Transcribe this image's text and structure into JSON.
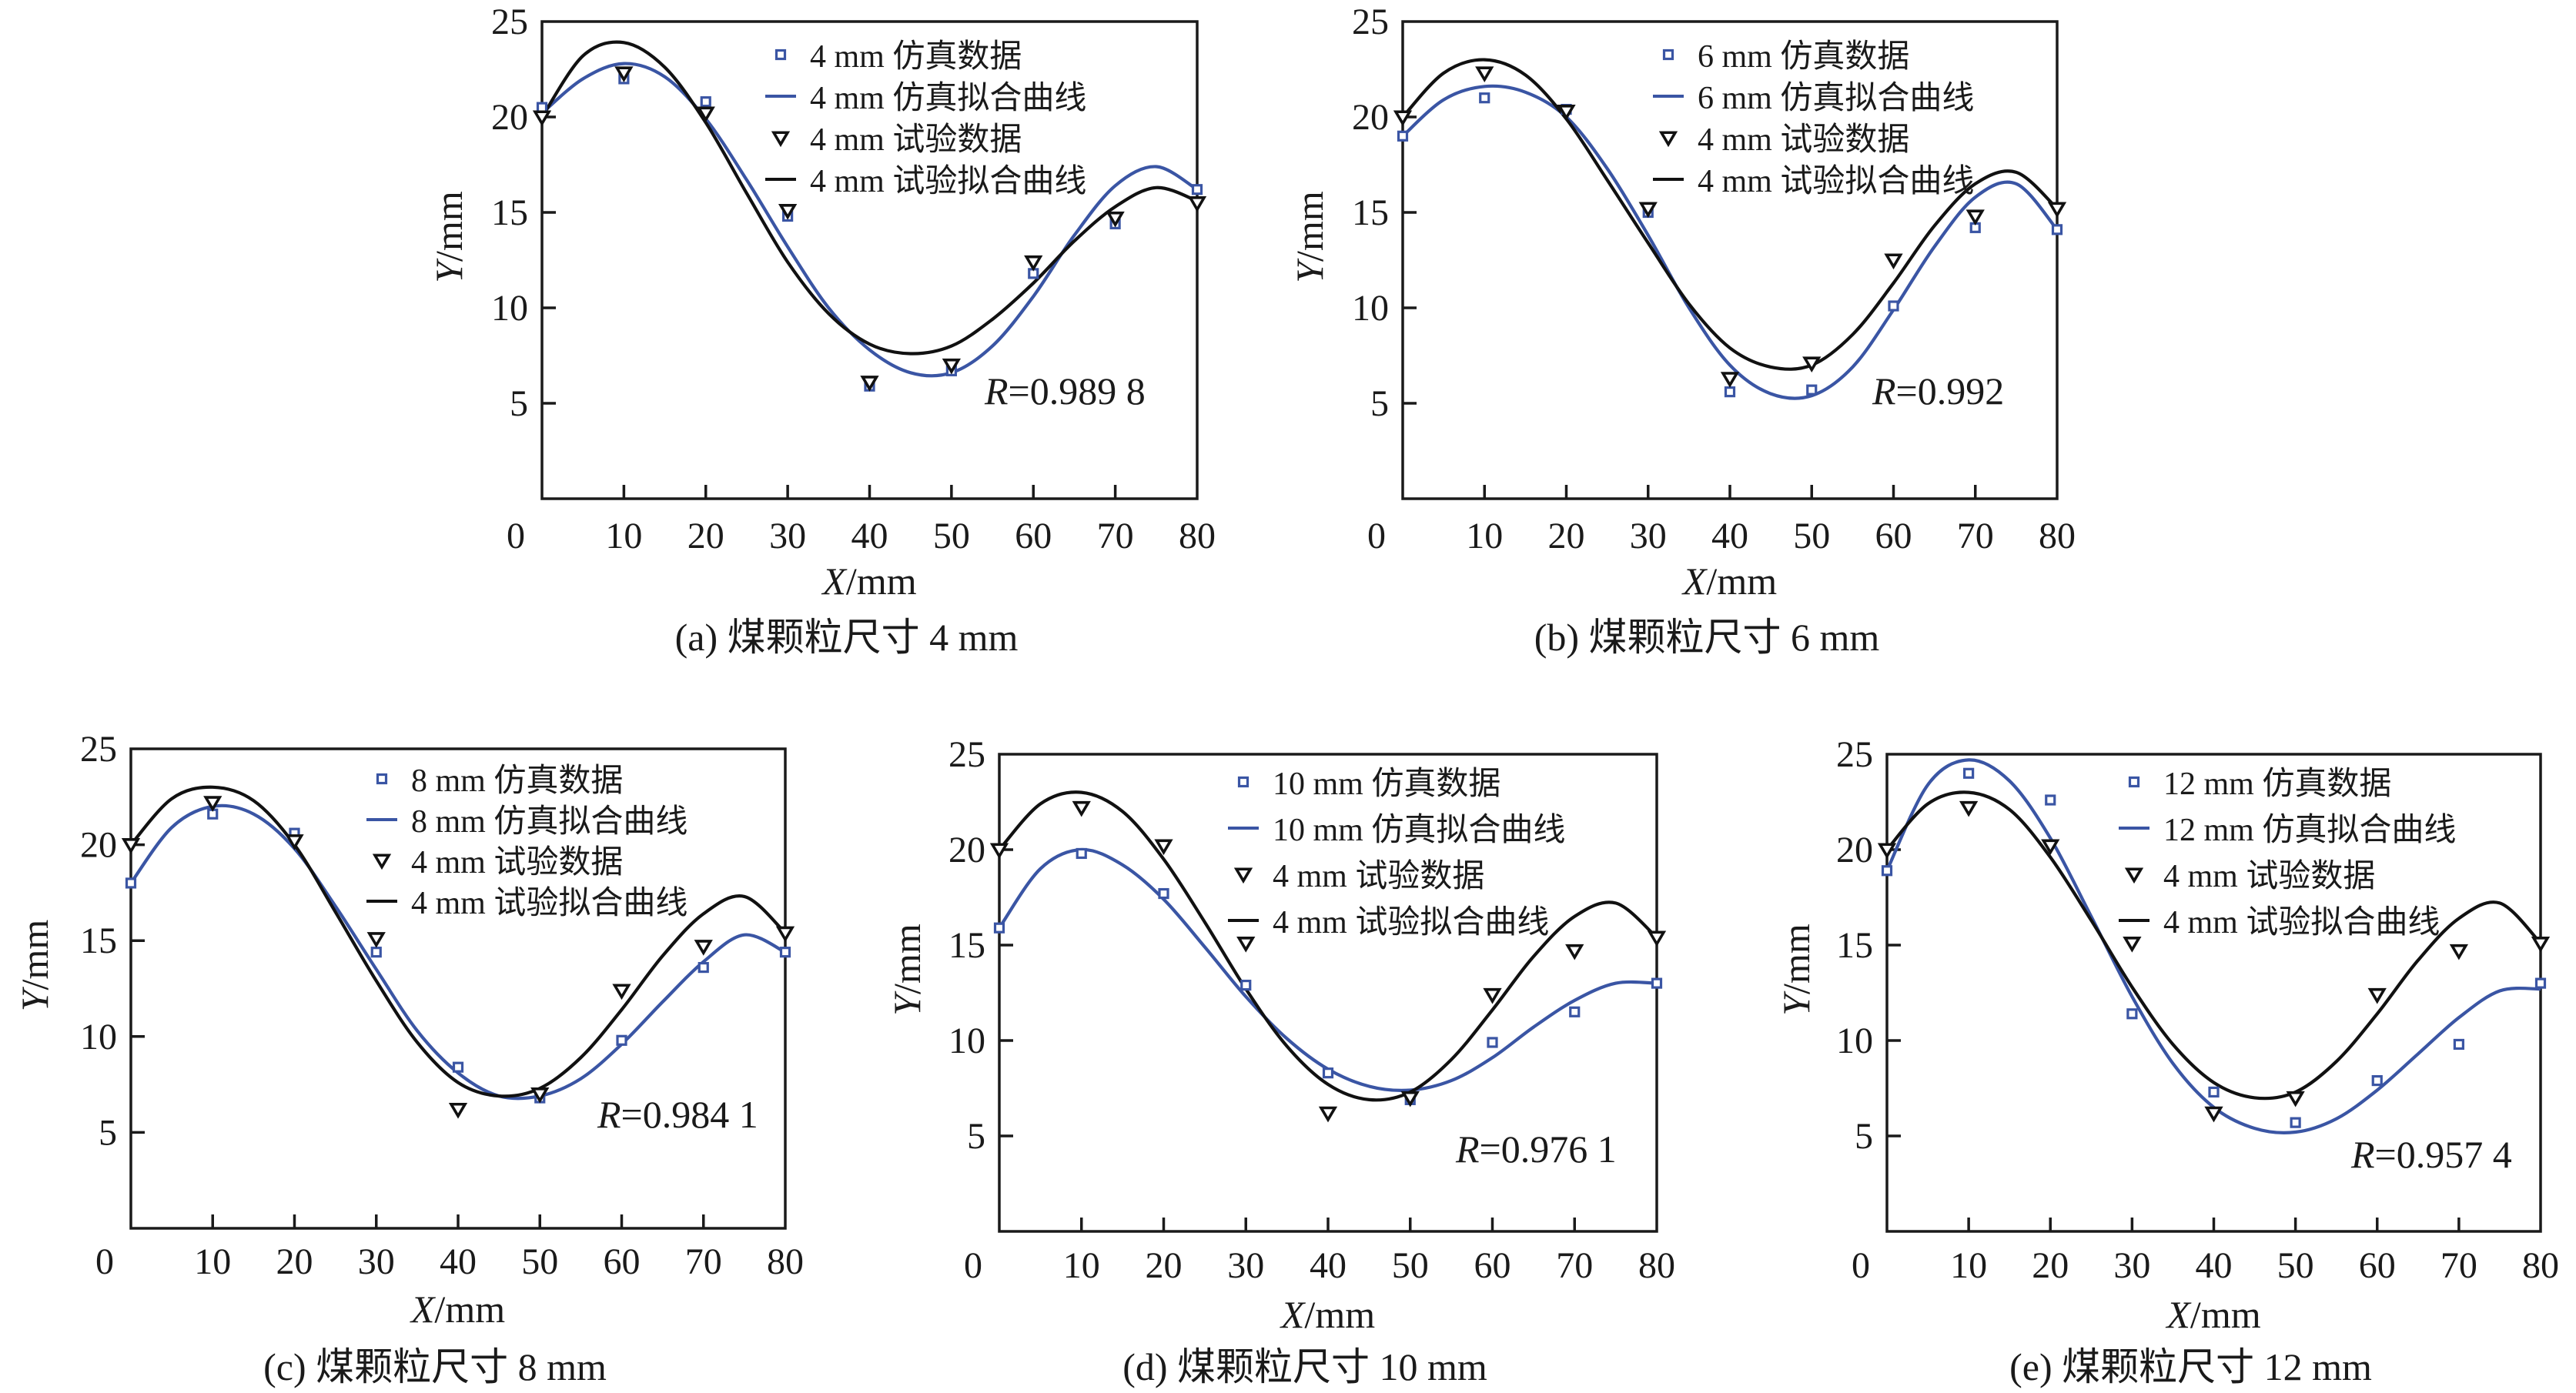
{
  "colors": {
    "simulation": "#3a55a4",
    "experiment": "#111111",
    "axis": "#1a1a1a"
  },
  "chart_data": [
    {
      "id": "a",
      "type": "line",
      "caption": "(a) 煤颗粒尺寸 4 mm",
      "xlabel_italic": "X",
      "xlabel_unit": "/mm",
      "ylabel_italic": "Y",
      "ylabel_unit": "/mm",
      "xlim": [
        0,
        80
      ],
      "ylim": [
        0,
        25
      ],
      "xticks": [
        0,
        10,
        20,
        30,
        40,
        50,
        60,
        70,
        80
      ],
      "yticks": [
        5,
        10,
        15,
        20,
        25
      ],
      "grid": false,
      "legend_position": "top-right",
      "r_label_italic": "R",
      "r_label_value": "=0.989 8",
      "x": [
        0,
        10,
        20,
        30,
        40,
        50,
        60,
        70,
        80
      ],
      "series": [
        {
          "name": "4 mm 仿真数据",
          "kind": "scatter-square",
          "values": [
            20.5,
            22.0,
            20.8,
            14.8,
            5.9,
            6.7,
            11.8,
            14.4,
            16.2
          ]
        },
        {
          "name": "4 mm 仿真拟合曲线",
          "kind": "fit-line-blue",
          "fit_x": [
            0,
            5,
            10,
            15,
            20,
            25,
            30,
            35,
            40,
            45,
            50,
            55,
            60,
            65,
            70,
            75,
            80
          ],
          "fit_y": [
            20.2,
            22.0,
            22.8,
            22.1,
            19.9,
            16.7,
            13.2,
            10.0,
            7.8,
            6.6,
            6.6,
            8.0,
            10.6,
            13.8,
            16.4,
            17.4,
            16.2
          ]
        },
        {
          "name": "4 mm 试验数据",
          "kind": "scatter-triangle",
          "values": [
            20.0,
            22.3,
            20.2,
            15.1,
            6.1,
            7.0,
            12.4,
            14.7,
            15.5
          ]
        },
        {
          "name": "4 mm 试验拟合曲线",
          "kind": "fit-line-black",
          "fit_x": [
            0,
            5,
            10,
            15,
            20,
            25,
            30,
            35,
            40,
            45,
            50,
            55,
            60,
            65,
            70,
            75,
            80
          ],
          "fit_y": [
            20.0,
            23.2,
            23.9,
            22.6,
            19.7,
            16.0,
            12.4,
            9.7,
            8.1,
            7.6,
            8.0,
            9.4,
            11.3,
            13.5,
            15.3,
            16.3,
            15.6
          ]
        }
      ]
    },
    {
      "id": "b",
      "type": "line",
      "caption": "(b) 煤颗粒尺寸 6 mm",
      "xlabel_italic": "X",
      "xlabel_unit": "/mm",
      "ylabel_italic": "Y",
      "ylabel_unit": "/mm",
      "xlim": [
        0,
        80
      ],
      "ylim": [
        0,
        25
      ],
      "xticks": [
        0,
        10,
        20,
        30,
        40,
        50,
        60,
        70,
        80
      ],
      "yticks": [
        5,
        10,
        15,
        20,
        25
      ],
      "grid": false,
      "legend_position": "top-right",
      "r_label_italic": "R",
      "r_label_value": "=0.992",
      "x": [
        0,
        10,
        20,
        30,
        40,
        50,
        60,
        70,
        80
      ],
      "series": [
        {
          "name": "6 mm 仿真数据",
          "kind": "scatter-square",
          "values": [
            19.0,
            21.0,
            20.4,
            15.0,
            5.6,
            5.7,
            10.1,
            14.2,
            14.1
          ]
        },
        {
          "name": "6 mm 仿真拟合曲线",
          "kind": "fit-line-blue",
          "fit_x": [
            0,
            5,
            10,
            15,
            20,
            25,
            30,
            35,
            40,
            45,
            50,
            55,
            60,
            65,
            70,
            75,
            80
          ],
          "fit_y": [
            19.0,
            20.9,
            21.6,
            21.3,
            20.0,
            17.3,
            13.8,
            10.0,
            7.0,
            5.5,
            5.4,
            6.9,
            9.9,
            13.2,
            15.8,
            16.5,
            14.1
          ]
        },
        {
          "name": "4 mm 试验数据",
          "kind": "scatter-triangle",
          "values": [
            20.0,
            22.3,
            20.3,
            15.2,
            6.3,
            7.1,
            12.5,
            14.8,
            15.2
          ]
        },
        {
          "name": "4 mm 试验拟合曲线",
          "kind": "fit-line-black",
          "fit_x": [
            0,
            5,
            10,
            15,
            20,
            25,
            30,
            35,
            40,
            45,
            50,
            55,
            60,
            65,
            70,
            75,
            80
          ],
          "fit_y": [
            20.0,
            22.3,
            23.0,
            22.2,
            19.9,
            16.7,
            13.4,
            10.2,
            7.9,
            6.9,
            7.0,
            8.6,
            11.3,
            14.3,
            16.5,
            17.1,
            15.2
          ]
        }
      ]
    },
    {
      "id": "c",
      "type": "line",
      "caption": "(c) 煤颗粒尺寸 8 mm",
      "xlabel_italic": "X",
      "xlabel_unit": "/mm",
      "ylabel_italic": "Y",
      "ylabel_unit": "/mm",
      "xlim": [
        0,
        80
      ],
      "ylim": [
        0,
        25
      ],
      "xticks": [
        0,
        10,
        20,
        30,
        40,
        50,
        60,
        70,
        80
      ],
      "yticks": [
        5,
        10,
        15,
        20,
        25
      ],
      "grid": false,
      "legend_position": "top-right",
      "r_label_italic": "R",
      "r_label_value": "=0.984 1",
      "x": [
        0,
        10,
        20,
        30,
        40,
        50,
        60,
        70,
        80
      ],
      "series": [
        {
          "name": "8 mm 仿真数据",
          "kind": "scatter-square",
          "values": [
            18.0,
            21.6,
            20.6,
            14.4,
            8.4,
            6.8,
            9.8,
            13.6,
            14.4
          ]
        },
        {
          "name": "8 mm 仿真拟合曲线",
          "kind": "fit-line-blue",
          "fit_x": [
            0,
            5,
            10,
            15,
            20,
            25,
            30,
            35,
            40,
            45,
            50,
            55,
            60,
            65,
            70,
            75,
            80
          ],
          "fit_y": [
            18.0,
            20.9,
            22.0,
            21.6,
            19.8,
            16.8,
            13.5,
            10.3,
            8.1,
            6.9,
            6.9,
            7.8,
            9.6,
            11.8,
            13.9,
            15.3,
            14.4
          ]
        },
        {
          "name": "4 mm 试验数据",
          "kind": "scatter-triangle",
          "values": [
            20.0,
            22.2,
            20.2,
            15.1,
            6.2,
            7.0,
            12.4,
            14.7,
            15.4
          ]
        },
        {
          "name": "4 mm 试验拟合曲线",
          "kind": "fit-line-black",
          "fit_x": [
            0,
            5,
            10,
            15,
            20,
            25,
            30,
            35,
            40,
            45,
            50,
            55,
            60,
            65,
            70,
            75,
            80
          ],
          "fit_y": [
            20.0,
            22.4,
            23.0,
            22.3,
            20.0,
            16.5,
            12.9,
            9.7,
            7.6,
            6.9,
            7.3,
            8.9,
            11.4,
            14.2,
            16.4,
            17.3,
            15.4
          ]
        }
      ]
    },
    {
      "id": "d",
      "type": "line",
      "caption": "(d) 煤颗粒尺寸 10 mm",
      "xlabel_italic": "X",
      "xlabel_unit": "/mm",
      "ylabel_italic": "Y",
      "ylabel_unit": "/mm",
      "xlim": [
        0,
        80
      ],
      "ylim": [
        0,
        25
      ],
      "xticks": [
        0,
        10,
        20,
        30,
        40,
        50,
        60,
        70,
        80
      ],
      "yticks": [
        5,
        10,
        15,
        20,
        25
      ],
      "grid": false,
      "legend_position": "top-right",
      "r_label_italic": "R",
      "r_label_value": "=0.976 1",
      "x": [
        0,
        10,
        20,
        30,
        40,
        50,
        60,
        70,
        80
      ],
      "series": [
        {
          "name": "10 mm 仿真数据",
          "kind": "scatter-square",
          "values": [
            15.9,
            19.8,
            17.7,
            12.9,
            8.3,
            6.9,
            9.9,
            11.5,
            13.0
          ]
        },
        {
          "name": "10 mm 仿真拟合曲线",
          "kind": "fit-line-blue",
          "fit_x": [
            0,
            5,
            10,
            15,
            20,
            25,
            30,
            35,
            40,
            45,
            50,
            55,
            60,
            65,
            70,
            75,
            80
          ],
          "fit_y": [
            15.9,
            19.0,
            20.0,
            19.2,
            17.4,
            14.9,
            12.3,
            10.1,
            8.5,
            7.6,
            7.4,
            7.9,
            9.1,
            10.7,
            12.1,
            13.0,
            13.0
          ]
        },
        {
          "name": "4 mm 试验数据",
          "kind": "scatter-triangle",
          "values": [
            20.0,
            22.2,
            20.2,
            15.1,
            6.2,
            7.0,
            12.4,
            14.7,
            15.4
          ]
        },
        {
          "name": "4 mm 试验拟合曲线",
          "kind": "fit-line-black",
          "fit_x": [
            0,
            5,
            10,
            15,
            20,
            25,
            30,
            35,
            40,
            45,
            50,
            55,
            60,
            65,
            70,
            75,
            80
          ],
          "fit_y": [
            20.0,
            22.4,
            23.0,
            22.0,
            19.5,
            16.2,
            12.7,
            9.7,
            7.7,
            6.9,
            7.3,
            9.0,
            11.6,
            14.4,
            16.5,
            17.2,
            15.4
          ]
        }
      ]
    },
    {
      "id": "e",
      "type": "line",
      "caption": "(e) 煤颗粒尺寸 12 mm",
      "xlabel_italic": "X",
      "xlabel_unit": "/mm",
      "ylabel_italic": "Y",
      "ylabel_unit": "/mm",
      "xlim": [
        0,
        80
      ],
      "ylim": [
        0,
        25
      ],
      "xticks": [
        0,
        10,
        20,
        30,
        40,
        50,
        60,
        70,
        80
      ],
      "yticks": [
        5,
        10,
        15,
        20,
        25
      ],
      "grid": false,
      "legend_position": "top-right",
      "r_label_italic": "R",
      "r_label_value": "=0.957 4",
      "x": [
        0,
        10,
        20,
        30,
        40,
        50,
        60,
        70,
        80
      ],
      "series": [
        {
          "name": "12 mm 仿真数据",
          "kind": "scatter-square",
          "values": [
            18.9,
            24.0,
            22.6,
            11.4,
            7.3,
            5.7,
            7.9,
            9.8,
            13.0
          ]
        },
        {
          "name": "12 mm 仿真拟合曲线",
          "kind": "fit-line-blue",
          "fit_x": [
            0,
            5,
            10,
            15,
            20,
            25,
            30,
            35,
            40,
            45,
            50,
            55,
            60,
            65,
            70,
            75,
            80
          ],
          "fit_y": [
            18.9,
            23.4,
            24.7,
            23.6,
            20.6,
            16.5,
            12.3,
            8.8,
            6.5,
            5.4,
            5.2,
            5.9,
            7.4,
            9.3,
            11.2,
            12.6,
            12.7
          ]
        },
        {
          "name": "4 mm 试验数据",
          "kind": "scatter-triangle",
          "values": [
            20.0,
            22.2,
            20.2,
            15.1,
            6.2,
            7.0,
            12.4,
            14.7,
            15.1
          ]
        },
        {
          "name": "4 mm 试验拟合曲线",
          "kind": "fit-line-black",
          "fit_x": [
            0,
            5,
            10,
            15,
            20,
            25,
            30,
            35,
            40,
            45,
            50,
            55,
            60,
            65,
            70,
            75,
            80
          ],
          "fit_y": [
            20.0,
            22.4,
            23.0,
            22.1,
            19.6,
            16.3,
            12.8,
            9.8,
            7.8,
            7.0,
            7.3,
            8.9,
            11.4,
            14.2,
            16.4,
            17.2,
            15.1
          ]
        }
      ]
    }
  ]
}
